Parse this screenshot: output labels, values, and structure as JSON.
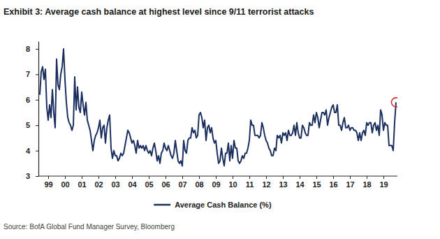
{
  "chart_data": {
    "type": "line",
    "title": "Exhibit 3: Average cash balance at highest level since 9/11 terrorist attacks",
    "source": "Source: BofA Global Fund Manager Survey, Bloomberg",
    "legend": "bottom",
    "grid": false,
    "categories": [
      null,
      null,
      null,
      null,
      null,
      null,
      "99",
      null,
      null,
      null,
      null,
      null,
      null,
      null,
      null,
      null,
      null,
      null,
      "00",
      null,
      null,
      null,
      null,
      null,
      null,
      null,
      null,
      null,
      null,
      null,
      "01",
      null,
      null,
      null,
      null,
      null,
      null,
      null,
      null,
      null,
      null,
      null,
      "02",
      null,
      null,
      null,
      null,
      null,
      null,
      null,
      null,
      null,
      null,
      null,
      "03",
      null,
      null,
      null,
      null,
      null,
      null,
      null,
      null,
      null,
      null,
      null,
      "04",
      null,
      null,
      null,
      null,
      null,
      null,
      null,
      null,
      null,
      null,
      null,
      "05",
      null,
      null,
      null,
      null,
      null,
      null,
      null,
      null,
      null,
      null,
      null,
      "06",
      null,
      null,
      null,
      null,
      null,
      null,
      null,
      null,
      null,
      null,
      null,
      "07",
      null,
      null,
      null,
      null,
      null,
      null,
      null,
      null,
      null,
      null,
      null,
      "08",
      null,
      null,
      null,
      null,
      null,
      null,
      null,
      null,
      null,
      null,
      null,
      "09",
      null,
      null,
      null,
      null,
      null,
      null,
      null,
      null,
      null,
      null,
      null,
      "10",
      null,
      null,
      null,
      null,
      null,
      null,
      null,
      null,
      null,
      null,
      null,
      "11",
      null,
      null,
      null,
      null,
      null,
      null,
      null,
      null,
      null,
      null,
      null,
      "12",
      null,
      null,
      null,
      null,
      null,
      null,
      null,
      null,
      null,
      null,
      null,
      "13",
      null,
      null,
      null,
      null,
      null,
      null,
      null,
      null,
      null,
      null,
      null,
      "14",
      null,
      null,
      null,
      null,
      null,
      null,
      null,
      null,
      null,
      null,
      null,
      "15",
      null,
      null,
      null,
      null,
      null,
      null,
      null,
      null,
      null,
      null,
      null,
      "16",
      null,
      null,
      null,
      null,
      null,
      null,
      null,
      null,
      null,
      null,
      null,
      "17",
      null,
      null,
      null,
      null,
      null,
      null,
      null,
      null,
      null,
      null,
      null,
      "18",
      null,
      null,
      null,
      null,
      null,
      null,
      null,
      null,
      null,
      null,
      null,
      "19",
      null,
      null,
      null,
      null,
      null,
      null,
      null,
      null,
      null
    ],
    "series": [
      {
        "name": "Average Cash Balance (%)",
        "color": "#1b2f5e",
        "values": [
          6.2,
          7.1,
          7.3,
          6.8,
          7.2,
          5.7,
          5.2,
          5.8,
          5.3,
          6.4,
          5.5,
          4.9,
          7.6,
          6.6,
          6.4,
          7.0,
          7.3,
          8.0,
          6.8,
          5.9,
          5.3,
          5.1,
          5.0,
          4.8,
          5.0,
          6.9,
          5.6,
          6.5,
          5.7,
          5.5,
          6.3,
          5.8,
          5.4,
          5.9,
          5.2,
          5.0,
          4.8,
          4.4,
          4.0,
          4.4,
          4.6,
          4.7,
          4.9,
          5.2,
          4.5,
          4.9,
          5.0,
          4.3,
          4.9,
          5.2,
          5.4,
          4.1,
          3.7,
          4.0,
          3.8,
          3.8,
          3.6,
          3.7,
          3.9,
          3.8,
          3.9,
          4.2,
          4.5,
          4.8,
          4.7,
          4.5,
          4.3,
          4.4,
          4.2,
          3.9,
          4.4,
          4.1,
          4.2,
          4.1,
          4.2,
          4.0,
          4.2,
          4.0,
          3.9,
          4.0,
          3.8,
          4.1,
          4.3,
          4.0,
          3.6,
          3.8,
          3.5,
          3.9,
          4.0,
          4.3,
          4.1,
          4.0,
          4.2,
          4.0,
          3.8,
          3.7,
          3.9,
          4.4,
          4.0,
          3.6,
          3.5,
          3.6,
          3.4,
          4.4,
          4.0,
          3.9,
          4.4,
          4.5,
          4.5,
          4.9,
          4.7,
          4.8,
          4.5,
          4.6,
          5.4,
          5.5,
          5.3,
          4.9,
          5.2,
          4.4,
          4.9,
          5.0,
          4.7,
          4.9,
          4.5,
          4.3,
          4.4,
          3.9,
          3.5,
          3.6,
          4.1,
          3.7,
          3.4,
          3.9,
          3.9,
          4.3,
          3.6,
          4.2,
          3.7,
          4.4,
          4.1,
          4.1,
          3.6,
          3.5,
          3.6,
          3.8,
          3.7,
          3.9,
          3.9,
          4.1,
          4.4,
          5.2,
          5.0,
          5.0,
          4.6,
          4.6,
          4.6,
          4.5,
          4.6,
          5.1,
          4.9,
          4.6,
          4.4,
          4.3,
          4.1,
          4.0,
          3.8,
          3.8,
          4.1,
          4.0,
          4.6,
          4.5,
          4.6,
          4.3,
          4.7,
          4.6,
          4.7,
          4.4,
          4.8,
          4.6,
          4.6,
          4.7,
          5.0,
          4.6,
          5.1,
          4.7,
          4.5,
          4.5,
          5.0,
          4.9,
          4.7,
          4.6,
          4.6,
          5.1,
          5.0,
          5.0,
          5.4,
          5.1,
          5.5,
          5.3,
          4.9,
          5.2,
          5.5,
          5.5,
          5.4,
          5.6,
          5.0,
          5.3,
          5.5,
          5.7,
          5.8,
          5.5,
          5.5,
          5.8,
          5.0,
          5.0,
          4.8,
          5.1,
          5.3,
          4.9,
          4.9,
          5.0,
          4.8,
          4.9,
          4.9,
          4.8,
          4.8,
          4.7,
          4.4,
          4.7,
          4.4,
          4.7,
          4.8,
          4.6,
          5.1,
          5.0,
          5.1,
          5.1,
          4.7,
          5.0,
          5.1,
          4.8,
          5.0,
          4.6,
          5.6,
          5.4,
          4.8,
          5.1,
          5.0,
          5.0,
          4.2,
          4.2,
          4.2,
          4.0,
          5.1,
          5.9
        ]
      }
    ],
    "ylim": [
      3,
      8.3
    ],
    "yticks": [
      3,
      4,
      5,
      6,
      7,
      8
    ]
  }
}
